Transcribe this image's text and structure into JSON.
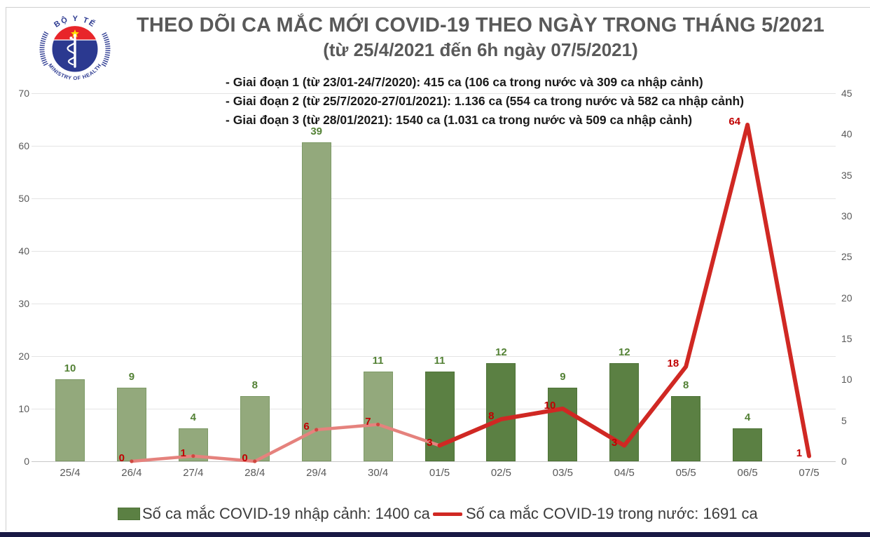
{
  "page": {
    "title_line1": "THEO DÕI CA MẮC MỚI COVID-19 THEO NGÀY TRONG THÁNG 5/2021",
    "title_line2": "(từ 25/4/2021 đến 6h ngày 07/5/2021)",
    "annotations": [
      "- Giai đoạn 1 (từ 23/01-24/7/2020): 415 ca (106 ca trong nước và 309 ca nhập cảnh)",
      "- Giai đoạn 2 (từ 25/7/2020-27/01/2021): 1.136 ca (554 ca trong nước và 582 ca nhập cảnh)",
      "- Giai đoạn 3 (từ 28/01/2021): 1540 ca (1.031 ca trong nước và 509 ca nhập cảnh)"
    ]
  },
  "logo": {
    "top_text": "BỘ Y TẾ",
    "bottom_text": "MINISTRY OF HEALTH"
  },
  "legend": {
    "bars_label": "Số ca mắc COVID-19 nhập cảnh: 1400 ca",
    "line_label": "Số ca mắc COVID-19 trong nước: 1691 ca"
  },
  "colors": {
    "title": "#595959",
    "annotation": "#1a1a1a",
    "axis_text": "#595959",
    "grid": "#e4e4e4",
    "baseline": "#c7c7c7",
    "bar_light": "#93A97C",
    "bar_dark": "#5B8043",
    "bar_border_light": "#7d9a66",
    "bar_border_dark": "#4e7337",
    "bar_label": "#538135",
    "line_light": "#E5827D",
    "line_dark": "#D02823",
    "line_marker": "#cf4840",
    "line_label": "#C00000",
    "legend_bar_swatch": "#5B8043",
    "legend_line_swatch": "#D02823",
    "bottom_bar": "#191945"
  },
  "chart_data": {
    "type": "combo-bar-line",
    "title": "THEO DÕI CA MẮC MỚI COVID-19 THEO NGÀY TRONG THÁNG 5/2021 (từ 25/4/2021 đến 6h ngày 07/5/2021)",
    "categories": [
      "25/4",
      "26/4",
      "27/4",
      "28/4",
      "29/4",
      "30/4",
      "01/5",
      "02/5",
      "03/5",
      "04/5",
      "05/5",
      "06/5",
      "07/5"
    ],
    "series": [
      {
        "name": "Số ca mắc COVID-19 nhập cảnh",
        "type": "bar",
        "axis": "right",
        "values": [
          10,
          9,
          4,
          8,
          39,
          11,
          11,
          12,
          9,
          12,
          8,
          4,
          null
        ]
      },
      {
        "name": "Số ca mắc COVID-19 trong nước",
        "type": "line",
        "axis": "left",
        "values": [
          null,
          0,
          1,
          0,
          6,
          7,
          3,
          8,
          10,
          3,
          18,
          64,
          1
        ]
      }
    ],
    "left_axis": {
      "min": 0,
      "max": 70,
      "step": 10
    },
    "right_axis": {
      "min": 0,
      "max": 45,
      "step": 5
    },
    "style_split_index": 6,
    "grid": true,
    "legend_position": "bottom"
  }
}
